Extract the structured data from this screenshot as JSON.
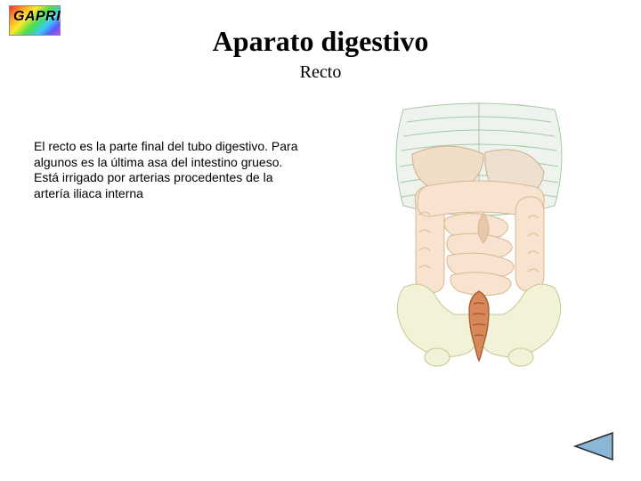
{
  "logo": {
    "text": "GAPRI"
  },
  "title": "Aparato digestivo",
  "subtitle": "Recto",
  "paragraph": "El recto es la parte final del tubo digestivo. Para algunos es la última asa del intestino grueso.\nEstá irrigado por arterias procedentes de la artería iliaca interna",
  "illustration": {
    "type": "anatomical-diagram",
    "description": "digestive-system-rectum",
    "background_color": "#ffffff",
    "outline_color": "#b09070",
    "outline_width": 1,
    "ribcage_fill": "#eef3ee",
    "ribcage_stroke": "#a8c8a8",
    "pelvis_fill": "#f2f2d8",
    "pelvis_stroke": "#c8c890",
    "intestine_fill": "#f7e3d0",
    "intestine_stroke": "#d8b890",
    "intestine_highlight": "#e8c8a8",
    "rectum_fill": "#d88858",
    "rectum_stroke": "#a05830",
    "liver_fill": "#f0ddc8",
    "stomach_fill": "#ede0d0"
  },
  "nav": {
    "prev_icon": "triangle-left",
    "fill": "#8bb6d6",
    "stroke": "#2a2a2a"
  }
}
